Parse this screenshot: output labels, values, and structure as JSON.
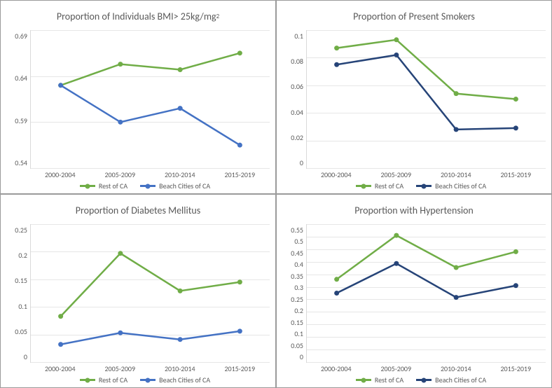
{
  "global": {
    "categories": [
      "2000-2004",
      "2005-2009",
      "2010-2014",
      "2015-2019"
    ],
    "legend_rest": "Rest of CA",
    "legend_beach": "Beach Cities of CA",
    "background_color": "#ffffff",
    "grid_color": "#e6e6e6",
    "axis_color": "#d9d9d9",
    "text_color": "#595959",
    "title_fontsize": 14,
    "tick_fontsize": 10,
    "line_width": 2.5,
    "marker_size": 7,
    "color_rest": "#70ad47",
    "color_beach_light": "#4472c4",
    "color_beach_dark": "#264478"
  },
  "panels": [
    {
      "key": "bmi",
      "title_html": "Proportion of Individuals BMI&gt; 25kg/mg<sup>2</sup>",
      "type": "line",
      "ylim": [
        0.54,
        0.69
      ],
      "yticks": [
        0.54,
        0.59,
        0.64,
        0.69
      ],
      "ytick_labels": [
        "0.54",
        "0.59",
        "0.64",
        "0.69"
      ],
      "series": [
        {
          "name": "Rest of CA",
          "color": "#70ad47",
          "values": [
            0.63,
            0.653,
            0.647,
            0.665
          ]
        },
        {
          "name": "Beach Cities of CA",
          "color": "#4472c4",
          "values": [
            0.63,
            0.59,
            0.605,
            0.565
          ]
        }
      ]
    },
    {
      "key": "smokers",
      "title_html": "Proportion of Present Smokers",
      "type": "line",
      "ylim": [
        0,
        0.1
      ],
      "yticks": [
        0,
        0.02,
        0.04,
        0.06,
        0.08,
        0.1
      ],
      "ytick_labels": [
        "0",
        "0.02",
        "0.04",
        "0.06",
        "0.08",
        "0.1"
      ],
      "series": [
        {
          "name": "Rest of CA",
          "color": "#70ad47",
          "values": [
            0.087,
            0.093,
            0.054,
            0.05
          ]
        },
        {
          "name": "Beach Cities of CA",
          "color": "#264478",
          "values": [
            0.075,
            0.082,
            0.028,
            0.029
          ]
        }
      ]
    },
    {
      "key": "diabetes",
      "title_html": "Proportion of Diabetes Mellitus",
      "type": "line",
      "ylim": [
        0,
        0.25
      ],
      "yticks": [
        0,
        0.05,
        0.1,
        0.15,
        0.2,
        0.25
      ],
      "ytick_labels": [
        "0",
        "0.05",
        "0.1",
        "0.15",
        "0.2",
        "0.25"
      ],
      "series": [
        {
          "name": "Rest of CA",
          "color": "#70ad47",
          "values": [
            0.083,
            0.197,
            0.129,
            0.145
          ]
        },
        {
          "name": "Beach Cities of CA",
          "color": "#4472c4",
          "values": [
            0.032,
            0.053,
            0.041,
            0.056
          ]
        }
      ]
    },
    {
      "key": "hypertension",
      "title_html": "Proportion with Hypertension",
      "type": "line",
      "ylim": [
        0,
        0.55
      ],
      "yticks": [
        0,
        0.05,
        0.1,
        0.15,
        0.2,
        0.25,
        0.3,
        0.35,
        0.4,
        0.45,
        0.5,
        0.55
      ],
      "ytick_labels": [
        "0",
        "0.05",
        "0.1",
        "0.15",
        "0.2",
        "0.25",
        "0.3",
        "0.35",
        "0.4",
        "0.45",
        "0.5",
        "0.55"
      ],
      "series": [
        {
          "name": "Rest of CA",
          "color": "#70ad47",
          "values": [
            0.33,
            0.505,
            0.377,
            0.44
          ]
        },
        {
          "name": "Beach Cities of CA",
          "color": "#264478",
          "values": [
            0.275,
            0.393,
            0.258,
            0.305
          ]
        }
      ]
    }
  ]
}
